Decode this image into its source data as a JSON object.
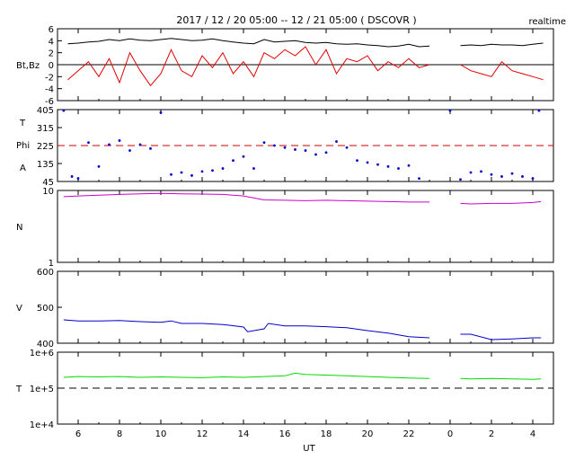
{
  "header": {
    "title": "2017 / 12 / 20   05:00 -- 12 / 21   05:00 ( DSCOVR )",
    "mode": "realtime"
  },
  "x_axis": {
    "label": "UT",
    "tick_labels": [
      "6",
      "8",
      "10",
      "12",
      "14",
      "16",
      "18",
      "20",
      "22",
      "0",
      "2",
      "4"
    ]
  },
  "panels": [
    {
      "id": "bt_bz",
      "ylabels": [
        "Bt,Bz"
      ],
      "tick_labels": [
        "6",
        "4",
        "2",
        "0",
        "-2",
        "-4",
        "-6"
      ]
    },
    {
      "id": "phi",
      "ylabels": [
        "T",
        "Phi",
        "A"
      ],
      "tick_labels": [
        "405",
        "315",
        "225",
        "135",
        "45"
      ]
    },
    {
      "id": "density",
      "ylabels": [
        "N"
      ],
      "tick_labels": [
        "10",
        "1"
      ]
    },
    {
      "id": "speed",
      "ylabels": [
        "V"
      ],
      "tick_labels": [
        "600",
        "500",
        "400"
      ]
    },
    {
      "id": "temperature",
      "ylabels": [
        "T"
      ],
      "tick_labels": [
        "1e+6",
        "1e+5",
        "1e+4"
      ]
    }
  ],
  "chart_data": [
    {
      "type": "line",
      "title": "2017 / 12 / 20   05:00 -- 12 / 21   05:00 ( DSCOVR )",
      "xlabel": "UT",
      "ylabel": "Bt,Bz",
      "ylim": [
        -6,
        6
      ],
      "x": [
        5.5,
        6,
        6.5,
        7,
        7.5,
        8,
        8.5,
        9,
        9.5,
        10,
        10.5,
        11,
        11.5,
        12,
        12.5,
        13,
        13.5,
        14,
        14.5,
        15,
        15.5,
        16,
        16.5,
        17,
        17.5,
        18,
        18.5,
        19,
        19.5,
        20,
        20.5,
        21,
        21.5,
        22,
        22.5,
        23,
        24.5,
        25,
        25.5,
        26,
        26.5,
        27,
        27.5,
        28,
        28.5
      ],
      "series": [
        {
          "name": "Bt",
          "color": "#000000",
          "values": [
            3.5,
            3.6,
            3.8,
            3.9,
            4.2,
            4.0,
            4.3,
            4.1,
            4.0,
            4.2,
            4.4,
            4.2,
            4.0,
            4.1,
            4.3,
            4.0,
            3.8,
            3.6,
            3.5,
            4.2,
            3.8,
            3.9,
            4.0,
            3.7,
            3.6,
            3.7,
            3.5,
            3.4,
            3.5,
            3.3,
            3.2,
            3.0,
            3.1,
            3.4,
            3.0,
            3.1,
            3.2,
            3.3,
            3.2,
            3.4,
            3.3,
            3.3,
            3.2,
            3.4,
            3.6
          ]
        },
        {
          "name": "Bz",
          "color": "#e00000",
          "values": [
            -2.5,
            -1.0,
            0.5,
            -2.0,
            1.0,
            -3.0,
            2.0,
            -1.0,
            -3.5,
            -1.5,
            2.5,
            -1.0,
            -2.0,
            1.5,
            -0.5,
            2.0,
            -1.5,
            0.5,
            -2.0,
            2.0,
            1.0,
            2.5,
            1.5,
            3.0,
            0.0,
            2.5,
            -1.5,
            1.0,
            0.5,
            1.5,
            -1.0,
            0.5,
            -0.5,
            1.0,
            -0.5,
            0.0,
            0.0,
            -1.0,
            -1.5,
            -2.0,
            0.5,
            -1.0,
            -1.5,
            -2.0,
            -2.5
          ]
        }
      ],
      "reference_lines": [
        0
      ]
    },
    {
      "type": "scatter",
      "ylabel": "Phi",
      "ylim": [
        45,
        405
      ],
      "x": [
        5.3,
        5.7,
        6.0,
        6.5,
        7.0,
        7.5,
        8.0,
        8.5,
        9.0,
        9.5,
        10.0,
        10.5,
        11.0,
        11.5,
        12.0,
        12.5,
        13.0,
        13.5,
        14.0,
        14.5,
        15.0,
        15.5,
        16.0,
        16.5,
        17.0,
        17.5,
        18.0,
        18.5,
        19.0,
        19.5,
        20.0,
        20.5,
        21.0,
        21.5,
        22.0,
        22.5,
        24.0,
        24.5,
        25.0,
        25.5,
        26.0,
        26.5,
        27.0,
        27.5,
        28.0,
        28.3
      ],
      "series": [
        {
          "name": "Phi",
          "color": "#0000cc",
          "values": [
            400,
            70,
            60,
            240,
            120,
            230,
            250,
            200,
            230,
            210,
            390,
            80,
            90,
            75,
            95,
            100,
            110,
            150,
            170,
            110,
            240,
            225,
            215,
            205,
            200,
            180,
            190,
            245,
            215,
            150,
            140,
            130,
            120,
            110,
            125,
            60,
            400,
            55,
            90,
            95,
            80,
            70,
            85,
            70,
            60,
            400
          ]
        }
      ],
      "reference_lines": [
        225
      ]
    },
    {
      "type": "line",
      "ylabel": "N",
      "ylim": [
        1,
        10
      ],
      "yscale": "log",
      "x": [
        5.3,
        6,
        7,
        8,
        9,
        10,
        11,
        12,
        13,
        14,
        15,
        16,
        17,
        18,
        19,
        20,
        21,
        22,
        23,
        24.5,
        25,
        26,
        27,
        28,
        28.4
      ],
      "series": [
        {
          "name": "N",
          "color": "#cc00cc",
          "values": [
            8.2,
            8.4,
            8.6,
            8.8,
            9.0,
            9.1,
            9.0,
            8.9,
            8.8,
            8.4,
            7.4,
            7.3,
            7.2,
            7.3,
            7.2,
            7.1,
            7.0,
            6.9,
            6.9,
            6.6,
            6.5,
            6.6,
            6.6,
            6.8,
            7.0
          ]
        }
      ]
    },
    {
      "type": "line",
      "ylabel": "V",
      "ylim": [
        400,
        600
      ],
      "x": [
        5.3,
        6,
        7,
        8,
        9,
        10,
        10.5,
        11,
        12,
        13,
        14,
        14.2,
        15,
        15.2,
        16,
        17,
        18,
        19,
        20,
        21,
        22,
        23,
        24.5,
        25,
        26,
        27,
        28,
        28.4
      ],
      "series": [
        {
          "name": "V",
          "color": "#0000cc",
          "values": [
            465,
            462,
            462,
            463,
            460,
            458,
            462,
            455,
            455,
            452,
            445,
            432,
            440,
            455,
            448,
            448,
            446,
            443,
            435,
            428,
            418,
            415,
            425,
            425,
            410,
            412,
            415,
            415
          ]
        }
      ]
    },
    {
      "type": "line",
      "ylabel": "T",
      "ylim": [
        10000,
        1000000
      ],
      "yscale": "log",
      "x": [
        5.3,
        6,
        7,
        8,
        9,
        10,
        11,
        12,
        13,
        14,
        15,
        16,
        16.5,
        17,
        18,
        19,
        20,
        21,
        22,
        23,
        24.5,
        25,
        26,
        27,
        28,
        28.4
      ],
      "series": [
        {
          "name": "T",
          "color": "#00dd00",
          "values": [
            200000,
            210000,
            205000,
            210000,
            200000,
            205000,
            200000,
            195000,
            205000,
            200000,
            210000,
            220000,
            260000,
            240000,
            230000,
            220000,
            210000,
            200000,
            190000,
            185000,
            185000,
            180000,
            185000,
            180000,
            175000,
            180000
          ]
        }
      ],
      "reference_lines": [
        100000
      ]
    }
  ]
}
